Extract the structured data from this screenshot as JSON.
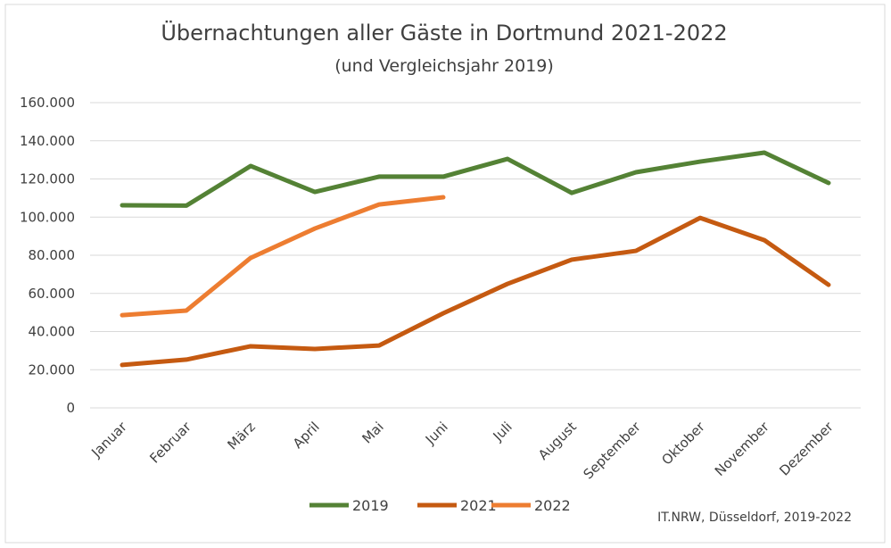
{
  "chart_data": {
    "type": "line",
    "title": "Übernachtungen aller Gäste in Dortmund 2021-2022",
    "subtitle": "(und Vergleichsjahr 2019)",
    "source": "IT.NRW, Düsseldorf, 2019-2022",
    "categories": [
      "Januar",
      "Februar",
      "März",
      "April",
      "Mai",
      "Juni",
      "Juli",
      "August",
      "September",
      "Oktober",
      "November",
      "Dezember"
    ],
    "series": [
      {
        "name": "2019",
        "color": "#548235",
        "values": [
          106200,
          106000,
          126800,
          113200,
          121200,
          121200,
          130500,
          112700,
          123500,
          129100,
          133800,
          117900
        ]
      },
      {
        "name": "2021",
        "color": "#c55a11",
        "values": [
          22500,
          25300,
          32300,
          30900,
          32700,
          49600,
          65000,
          77700,
          82300,
          99600,
          87900,
          64500
        ]
      },
      {
        "name": "2022",
        "color": "#ed7d31",
        "values": [
          48600,
          51000,
          78600,
          94000,
          106600,
          110400,
          null,
          null,
          null,
          null,
          null,
          null
        ]
      }
    ],
    "ylim": [
      0,
      160000
    ],
    "yticks": [
      0,
      {
        "value": 20000,
        "label": "20.000"
      },
      {
        "value": 40000,
        "label": "40.000"
      },
      {
        "value": 60000,
        "label": "60.000"
      },
      {
        "value": 80000,
        "label": "80.000"
      },
      {
        "value": 100000,
        "label": "100.000"
      },
      {
        "value": 120000,
        "label": "120.000"
      },
      {
        "value": 140000,
        "label": "140.000"
      },
      {
        "value": 160000,
        "label": "160.000"
      }
    ],
    "grid": true,
    "legend": "bottom"
  }
}
